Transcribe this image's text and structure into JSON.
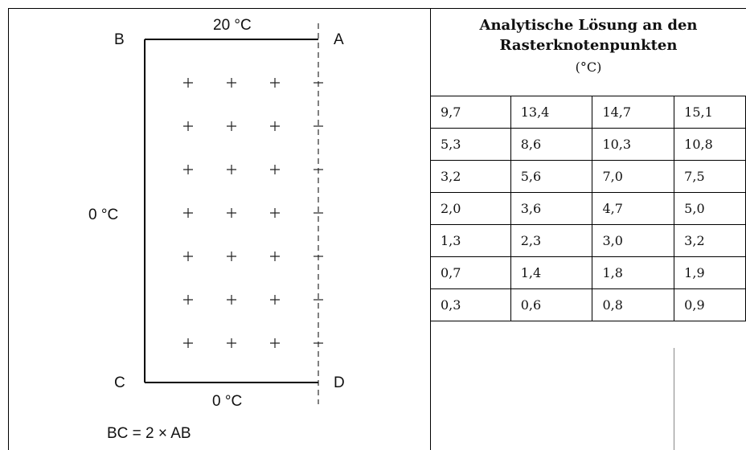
{
  "diagram": {
    "corner_b": "B",
    "corner_a": "A",
    "corner_c": "C",
    "corner_d": "D",
    "top_temp": "20 °C",
    "left_temp": "0 °C",
    "bottom_temp": "0 °C",
    "ratio_note": "BC = 2 × AB"
  },
  "table": {
    "title_line1": "Analytische Lösung an den",
    "title_line2": "Rasterknotenpunkten",
    "unit": "(°C)",
    "rows": [
      [
        "9,7",
        "13,4",
        "14,7",
        "15,1"
      ],
      [
        "5,3",
        "8,6",
        "10,3",
        "10,8"
      ],
      [
        "3,2",
        "5,6",
        "7,0",
        "7,5"
      ],
      [
        "2,0",
        "3,6",
        "4,7",
        "5,0"
      ],
      [
        "1,3",
        "2,3",
        "3,0",
        "3,2"
      ],
      [
        "0,7",
        "1,4",
        "1,8",
        "1,9"
      ],
      [
        "0,3",
        "0,6",
        "0,8",
        "0,9"
      ]
    ]
  }
}
